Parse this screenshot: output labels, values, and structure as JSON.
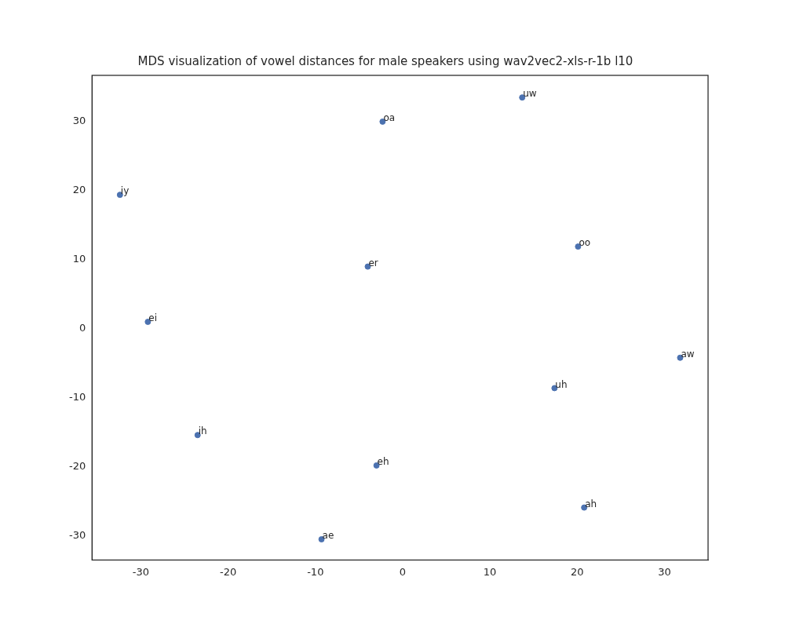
{
  "chart_data": {
    "type": "scatter",
    "title": "MDS visualization of vowel distances for male speakers using wav2vec2-xls-r-1b l10",
    "point_labels": [
      "iy",
      "oa",
      "uw",
      "ei",
      "er",
      "oo",
      "aw",
      "uh",
      "ih",
      "eh",
      "ae",
      "ah"
    ],
    "x": [
      -32.4,
      -2.3,
      13.7,
      -29.2,
      -4.0,
      20.1,
      31.8,
      17.4,
      -23.5,
      -3.0,
      -9.3,
      20.8
    ],
    "values": [
      19.4,
      30.0,
      33.5,
      1.0,
      9.0,
      11.9,
      -4.2,
      -8.6,
      -15.4,
      -19.8,
      -30.5,
      -25.9
    ],
    "color": "#4c72b0",
    "marker": "circle",
    "xlim": [
      -35.6,
      35.0
    ],
    "xticks": [
      -30,
      -20,
      -10,
      0,
      10,
      20,
      30
    ],
    "ylim": [
      -33.5,
      36.7
    ],
    "yticks": [
      -30,
      -20,
      -10,
      0,
      10,
      20,
      30
    ],
    "grid": false
  }
}
